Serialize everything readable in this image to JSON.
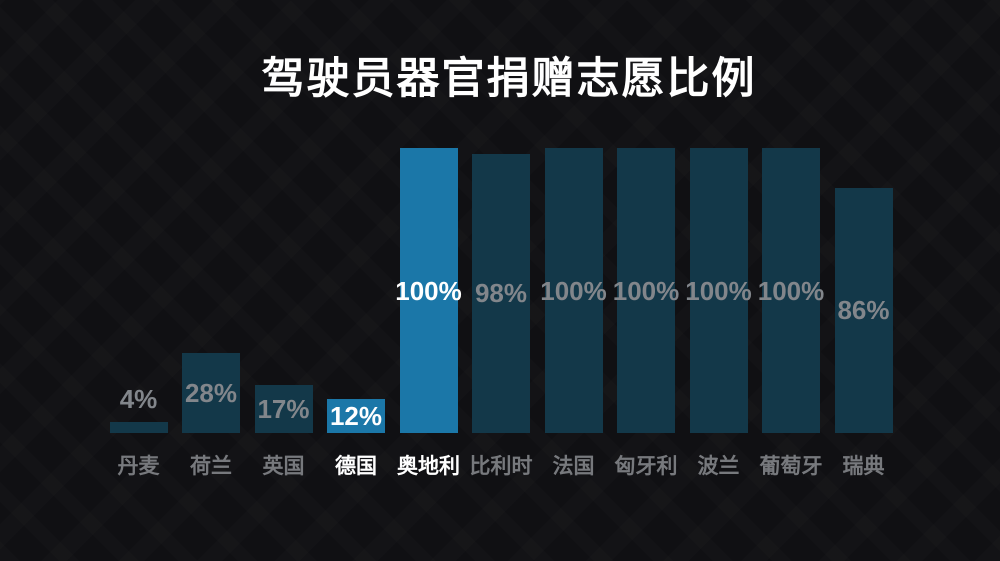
{
  "title": "驾驶员器官捐赠志愿比例",
  "chart_data": {
    "type": "bar",
    "title": "驾驶员器官捐赠志愿比例",
    "xlabel": "",
    "ylabel": "",
    "unit": "%",
    "ylim": [
      0,
      100
    ],
    "grid": false,
    "legend": "none",
    "categories": [
      "丹麦",
      "荷兰",
      "英国",
      "德国",
      "奥地利",
      "比利时",
      "法国",
      "匈牙利",
      "波兰",
      "葡萄牙",
      "瑞典"
    ],
    "values": [
      4,
      28,
      17,
      12,
      100,
      98,
      100,
      100,
      100,
      100,
      86
    ],
    "value_labels": [
      "4%",
      "28%",
      "17%",
      "12%",
      "100%",
      "98%",
      "100%",
      "100%",
      "100%",
      "100%",
      "86%"
    ],
    "highlighted": [
      false,
      false,
      false,
      true,
      true,
      false,
      false,
      false,
      false,
      false,
      false
    ],
    "colors": {
      "background": "#101013",
      "title": "#ffffff",
      "bar_default": "#133849",
      "bar_highlight": "#1b77a8",
      "value_label_default": "#82868b",
      "value_label_highlight": "#ffffff",
      "category_default": "#77797d",
      "category_highlight": "#ffffff"
    }
  }
}
